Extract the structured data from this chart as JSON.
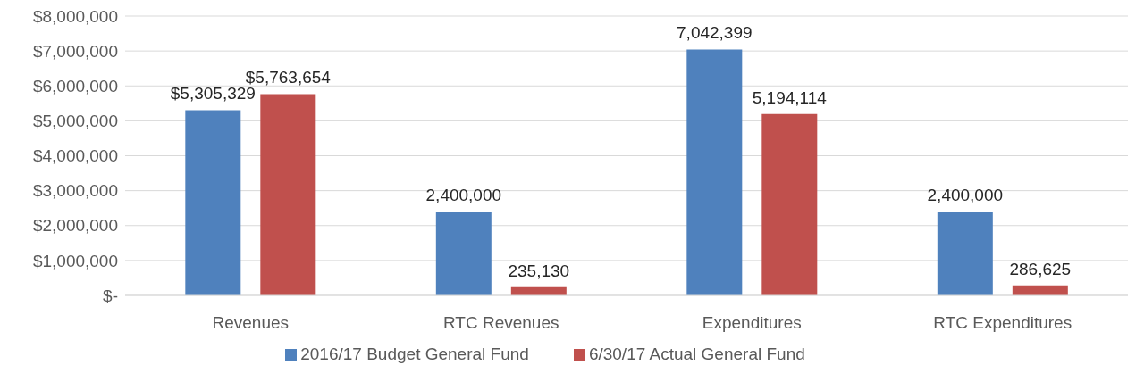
{
  "chart_data": {
    "type": "bar",
    "categories": [
      "Revenues",
      "RTC Revenues",
      "Expenditures",
      "RTC Expenditures"
    ],
    "series": [
      {
        "name": "2016/17 Budget General Fund",
        "color": "#4f81bd",
        "values": [
          5305329,
          2400000,
          7042399,
          2400000
        ],
        "value_labels": [
          "$5,305,329",
          "2,400,000",
          "7,042,399",
          "2,400,000"
        ]
      },
      {
        "name": "6/30/17 Actual General Fund",
        "color": "#c0504d",
        "values": [
          5763654,
          235130,
          5194114,
          286625
        ],
        "value_labels": [
          "$5,763,654",
          "235,130",
          "5,194,114",
          "286,625"
        ]
      }
    ],
    "ylim": [
      0,
      8000000
    ],
    "yticks": [
      {
        "value": 0,
        "label": "$-"
      },
      {
        "value": 1000000,
        "label": "$1,000,000"
      },
      {
        "value": 2000000,
        "label": "$2,000,000"
      },
      {
        "value": 3000000,
        "label": "$3,000,000"
      },
      {
        "value": 4000000,
        "label": "$4,000,000"
      },
      {
        "value": 5000000,
        "label": "$5,000,000"
      },
      {
        "value": 6000000,
        "label": "$6,000,000"
      },
      {
        "value": 7000000,
        "label": "$7,000,000"
      },
      {
        "value": 8000000,
        "label": "$8,000,000"
      }
    ],
    "grid": "y",
    "legend": "bottom"
  }
}
